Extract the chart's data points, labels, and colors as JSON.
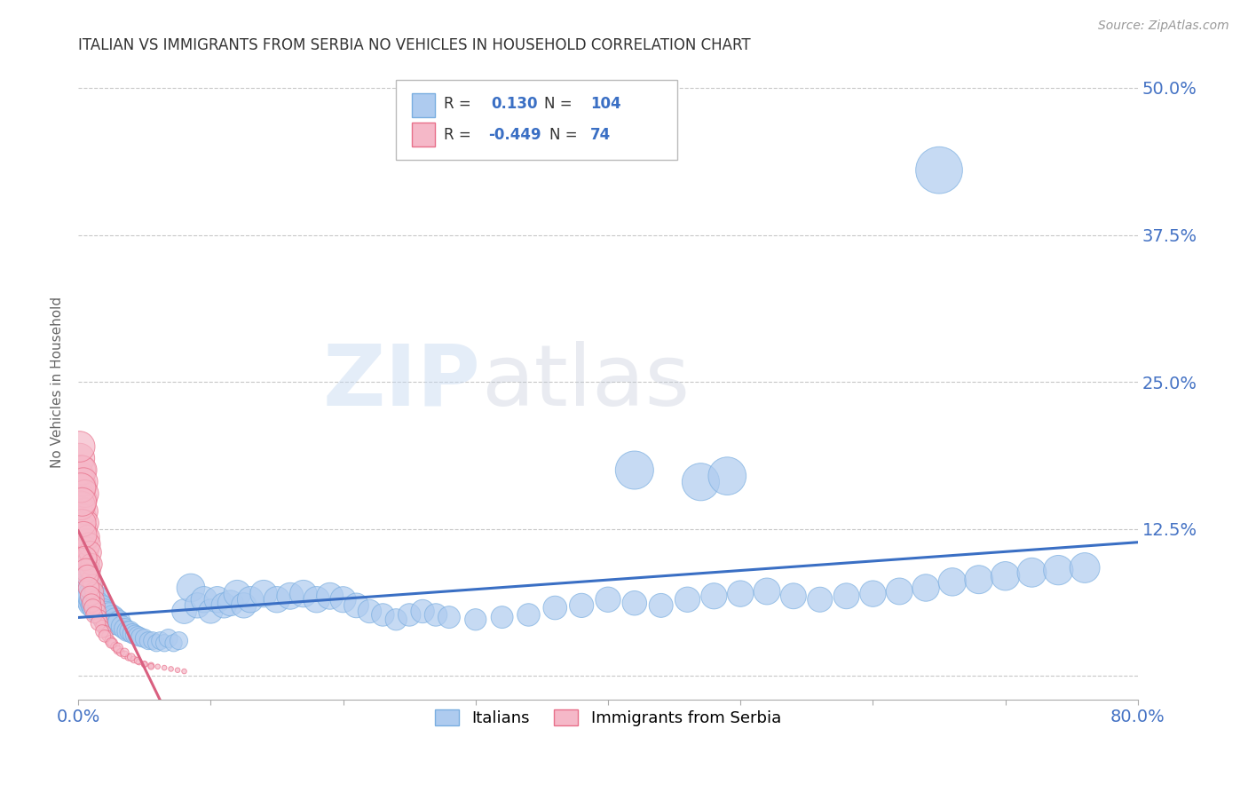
{
  "title": "ITALIAN VS IMMIGRANTS FROM SERBIA NO VEHICLES IN HOUSEHOLD CORRELATION CHART",
  "source": "Source: ZipAtlas.com",
  "ylabel": "No Vehicles in Household",
  "xlim": [
    0.0,
    0.8
  ],
  "ylim": [
    -0.02,
    0.52
  ],
  "xticks": [
    0.0,
    0.1,
    0.2,
    0.3,
    0.4,
    0.5,
    0.6,
    0.7,
    0.8
  ],
  "yticks": [
    0.0,
    0.125,
    0.25,
    0.375,
    0.5
  ],
  "grid_color": "#c8c8c8",
  "watermark_zip": "ZIP",
  "watermark_atlas": "atlas",
  "legend_R1": "0.130",
  "legend_N1": "104",
  "legend_R2": "-0.449",
  "legend_N2": "74",
  "italian_color": "#aecbef",
  "italian_edge_color": "#7aaee0",
  "serbian_color": "#f5b8c8",
  "serbian_edge_color": "#e8708a",
  "italian_line_color": "#3a6fc4",
  "serbian_line_color": "#d96080",
  "title_color": "#333333",
  "axis_label_color": "#666666",
  "tick_color": "#4472c4",
  "background_color": "#ffffff",
  "italians_x": [
    0.003,
    0.004,
    0.005,
    0.005,
    0.006,
    0.006,
    0.007,
    0.007,
    0.008,
    0.008,
    0.009,
    0.009,
    0.01,
    0.01,
    0.011,
    0.012,
    0.013,
    0.014,
    0.015,
    0.016,
    0.017,
    0.018,
    0.019,
    0.02,
    0.021,
    0.022,
    0.023,
    0.025,
    0.026,
    0.027,
    0.028,
    0.03,
    0.031,
    0.033,
    0.035,
    0.037,
    0.039,
    0.041,
    0.043,
    0.045,
    0.047,
    0.05,
    0.053,
    0.056,
    0.059,
    0.062,
    0.065,
    0.068,
    0.072,
    0.076,
    0.08,
    0.085,
    0.09,
    0.095,
    0.1,
    0.105,
    0.11,
    0.115,
    0.12,
    0.125,
    0.13,
    0.14,
    0.15,
    0.16,
    0.17,
    0.18,
    0.19,
    0.2,
    0.21,
    0.22,
    0.23,
    0.24,
    0.25,
    0.26,
    0.27,
    0.28,
    0.3,
    0.32,
    0.34,
    0.36,
    0.38,
    0.4,
    0.42,
    0.44,
    0.46,
    0.48,
    0.5,
    0.52,
    0.54,
    0.56,
    0.58,
    0.6,
    0.62,
    0.64,
    0.66,
    0.68,
    0.7,
    0.72,
    0.74,
    0.76,
    0.42,
    0.47,
    0.49,
    0.65
  ],
  "italians_y": [
    0.085,
    0.09,
    0.078,
    0.082,
    0.075,
    0.08,
    0.07,
    0.073,
    0.068,
    0.072,
    0.065,
    0.07,
    0.062,
    0.068,
    0.064,
    0.06,
    0.058,
    0.065,
    0.06,
    0.055,
    0.058,
    0.052,
    0.055,
    0.05,
    0.053,
    0.048,
    0.052,
    0.048,
    0.05,
    0.045,
    0.048,
    0.044,
    0.046,
    0.042,
    0.04,
    0.038,
    0.038,
    0.036,
    0.035,
    0.034,
    0.033,
    0.032,
    0.03,
    0.03,
    0.028,
    0.03,
    0.028,
    0.032,
    0.028,
    0.03,
    0.055,
    0.075,
    0.06,
    0.065,
    0.055,
    0.065,
    0.06,
    0.062,
    0.07,
    0.06,
    0.065,
    0.07,
    0.065,
    0.068,
    0.07,
    0.065,
    0.068,
    0.065,
    0.06,
    0.055,
    0.052,
    0.048,
    0.052,
    0.055,
    0.052,
    0.05,
    0.048,
    0.05,
    0.052,
    0.058,
    0.06,
    0.065,
    0.062,
    0.06,
    0.065,
    0.068,
    0.07,
    0.072,
    0.068,
    0.065,
    0.068,
    0.07,
    0.072,
    0.075,
    0.08,
    0.082,
    0.085,
    0.088,
    0.09,
    0.092,
    0.175,
    0.165,
    0.17,
    0.43
  ],
  "italians_size": [
    80,
    85,
    75,
    80,
    72,
    78,
    68,
    72,
    65,
    70,
    62,
    66,
    60,
    64,
    58,
    56,
    54,
    60,
    56,
    52,
    54,
    48,
    52,
    46,
    50,
    44,
    48,
    44,
    46,
    42,
    44,
    40,
    42,
    38,
    36,
    34,
    34,
    32,
    31,
    30,
    29,
    28,
    26,
    26,
    24,
    26,
    24,
    28,
    24,
    26,
    50,
    65,
    52,
    56,
    48,
    56,
    52,
    54,
    60,
    52,
    56,
    60,
    56,
    58,
    60,
    56,
    58,
    55,
    50,
    45,
    42,
    38,
    42,
    45,
    42,
    40,
    38,
    40,
    42,
    46,
    48,
    52,
    49,
    47,
    52,
    55,
    56,
    58,
    54,
    51,
    54,
    56,
    58,
    60,
    64,
    66,
    68,
    70,
    72,
    74,
    120,
    115,
    118,
    180
  ],
  "serbian_x": [
    0.001,
    0.001,
    0.002,
    0.002,
    0.002,
    0.003,
    0.003,
    0.003,
    0.004,
    0.004,
    0.004,
    0.005,
    0.005,
    0.005,
    0.006,
    0.006,
    0.007,
    0.007,
    0.008,
    0.008,
    0.009,
    0.009,
    0.01,
    0.01,
    0.011,
    0.012,
    0.013,
    0.014,
    0.015,
    0.016,
    0.017,
    0.018,
    0.02,
    0.022,
    0.024,
    0.026,
    0.028,
    0.03,
    0.032,
    0.035,
    0.038,
    0.042,
    0.046,
    0.05,
    0.055,
    0.06,
    0.065,
    0.07,
    0.075,
    0.08,
    0.001,
    0.002,
    0.002,
    0.003,
    0.003,
    0.004,
    0.005,
    0.006,
    0.007,
    0.008,
    0.009,
    0.01,
    0.011,
    0.012,
    0.015,
    0.018,
    0.02,
    0.025,
    0.03,
    0.035,
    0.04,
    0.045,
    0.05,
    0.055
  ],
  "serbian_y": [
    0.17,
    0.185,
    0.155,
    0.165,
    0.175,
    0.145,
    0.16,
    0.175,
    0.135,
    0.15,
    0.165,
    0.125,
    0.14,
    0.155,
    0.115,
    0.13,
    0.108,
    0.118,
    0.098,
    0.112,
    0.09,
    0.105,
    0.082,
    0.095,
    0.078,
    0.072,
    0.065,
    0.06,
    0.055,
    0.05,
    0.046,
    0.042,
    0.038,
    0.034,
    0.03,
    0.028,
    0.025,
    0.022,
    0.02,
    0.018,
    0.016,
    0.014,
    0.012,
    0.01,
    0.009,
    0.008,
    0.007,
    0.006,
    0.005,
    0.004,
    0.195,
    0.145,
    0.16,
    0.13,
    0.148,
    0.12,
    0.1,
    0.09,
    0.085,
    0.075,
    0.068,
    0.062,
    0.058,
    0.052,
    0.045,
    0.038,
    0.034,
    0.028,
    0.024,
    0.02,
    0.016,
    0.013,
    0.01,
    0.008
  ],
  "serbian_size": [
    70,
    75,
    65,
    68,
    72,
    60,
    65,
    70,
    55,
    60,
    66,
    50,
    56,
    62,
    46,
    52,
    44,
    48,
    40,
    44,
    36,
    42,
    33,
    38,
    31,
    28,
    25,
    22,
    20,
    18,
    16,
    14,
    12,
    10,
    9,
    8,
    7,
    6,
    5,
    5,
    4,
    4,
    3,
    3,
    3,
    2,
    2,
    2,
    2,
    2,
    78,
    68,
    72,
    62,
    66,
    58,
    48,
    44,
    40,
    36,
    32,
    28,
    25,
    22,
    18,
    14,
    12,
    9,
    8,
    6,
    5,
    4,
    3,
    3
  ]
}
